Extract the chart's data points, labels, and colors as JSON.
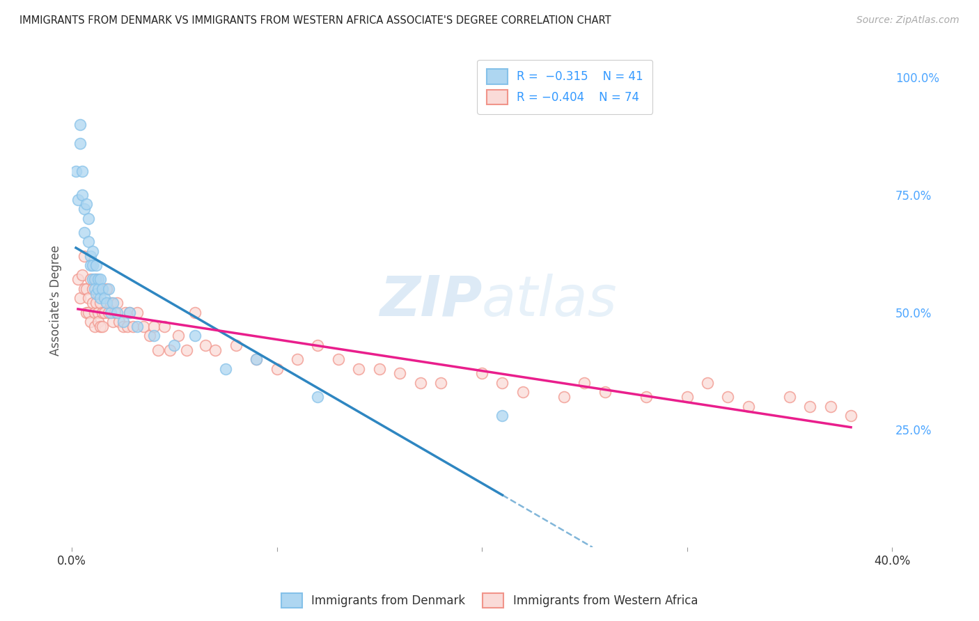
{
  "title": "IMMIGRANTS FROM DENMARK VS IMMIGRANTS FROM WESTERN AFRICA ASSOCIATE'S DEGREE CORRELATION CHART",
  "source": "Source: ZipAtlas.com",
  "ylabel": "Associate's Degree",
  "xlim": [
    0.0,
    0.4
  ],
  "ylim": [
    0.0,
    1.05
  ],
  "ytick_labels_right": [
    "100.0%",
    "75.0%",
    "50.0%",
    "25.0%"
  ],
  "ytick_positions_right": [
    1.0,
    0.75,
    0.5,
    0.25
  ],
  "color_denmark": "#85C1E9",
  "color_denmark_fill": "#AED6F1",
  "color_wa": "#F1948A",
  "color_wa_fill": "#FADBD8",
  "color_trend_denmark": "#2E86C1",
  "color_trend_wa": "#E91E8C",
  "background_color": "#FFFFFF",
  "grid_color": "#BBBBBB",
  "watermark_color": "#D6EAF8",
  "denmark_x": [
    0.002,
    0.003,
    0.004,
    0.004,
    0.005,
    0.005,
    0.006,
    0.006,
    0.007,
    0.008,
    0.008,
    0.009,
    0.009,
    0.01,
    0.01,
    0.01,
    0.011,
    0.011,
    0.012,
    0.012,
    0.013,
    0.013,
    0.014,
    0.014,
    0.015,
    0.016,
    0.017,
    0.018,
    0.019,
    0.02,
    0.022,
    0.025,
    0.028,
    0.032,
    0.04,
    0.05,
    0.06,
    0.075,
    0.09,
    0.12,
    0.21
  ],
  "denmark_y": [
    0.8,
    0.74,
    0.86,
    0.9,
    0.8,
    0.75,
    0.67,
    0.72,
    0.73,
    0.7,
    0.65,
    0.62,
    0.6,
    0.57,
    0.6,
    0.63,
    0.57,
    0.55,
    0.54,
    0.6,
    0.57,
    0.55,
    0.53,
    0.57,
    0.55,
    0.53,
    0.52,
    0.55,
    0.5,
    0.52,
    0.5,
    0.48,
    0.5,
    0.47,
    0.45,
    0.43,
    0.45,
    0.38,
    0.4,
    0.32,
    0.28
  ],
  "wa_x": [
    0.003,
    0.004,
    0.005,
    0.006,
    0.006,
    0.007,
    0.007,
    0.008,
    0.008,
    0.009,
    0.009,
    0.01,
    0.01,
    0.011,
    0.011,
    0.012,
    0.012,
    0.013,
    0.013,
    0.014,
    0.014,
    0.015,
    0.015,
    0.016,
    0.017,
    0.018,
    0.019,
    0.02,
    0.021,
    0.022,
    0.023,
    0.025,
    0.026,
    0.027,
    0.028,
    0.03,
    0.032,
    0.035,
    0.038,
    0.04,
    0.042,
    0.045,
    0.048,
    0.052,
    0.056,
    0.06,
    0.065,
    0.07,
    0.08,
    0.09,
    0.1,
    0.11,
    0.12,
    0.13,
    0.14,
    0.15,
    0.16,
    0.17,
    0.18,
    0.2,
    0.21,
    0.22,
    0.24,
    0.25,
    0.26,
    0.28,
    0.3,
    0.31,
    0.32,
    0.33,
    0.35,
    0.36,
    0.37,
    0.38
  ],
  "wa_y": [
    0.57,
    0.53,
    0.58,
    0.62,
    0.55,
    0.55,
    0.5,
    0.53,
    0.5,
    0.57,
    0.48,
    0.52,
    0.55,
    0.5,
    0.47,
    0.52,
    0.57,
    0.5,
    0.48,
    0.52,
    0.47,
    0.5,
    0.47,
    0.5,
    0.55,
    0.5,
    0.52,
    0.48,
    0.5,
    0.52,
    0.48,
    0.47,
    0.5,
    0.47,
    0.5,
    0.47,
    0.5,
    0.47,
    0.45,
    0.47,
    0.42,
    0.47,
    0.42,
    0.45,
    0.42,
    0.5,
    0.43,
    0.42,
    0.43,
    0.4,
    0.38,
    0.4,
    0.43,
    0.4,
    0.38,
    0.38,
    0.37,
    0.35,
    0.35,
    0.37,
    0.35,
    0.33,
    0.32,
    0.35,
    0.33,
    0.32,
    0.32,
    0.35,
    0.32,
    0.3,
    0.32,
    0.3,
    0.3,
    0.28
  ]
}
